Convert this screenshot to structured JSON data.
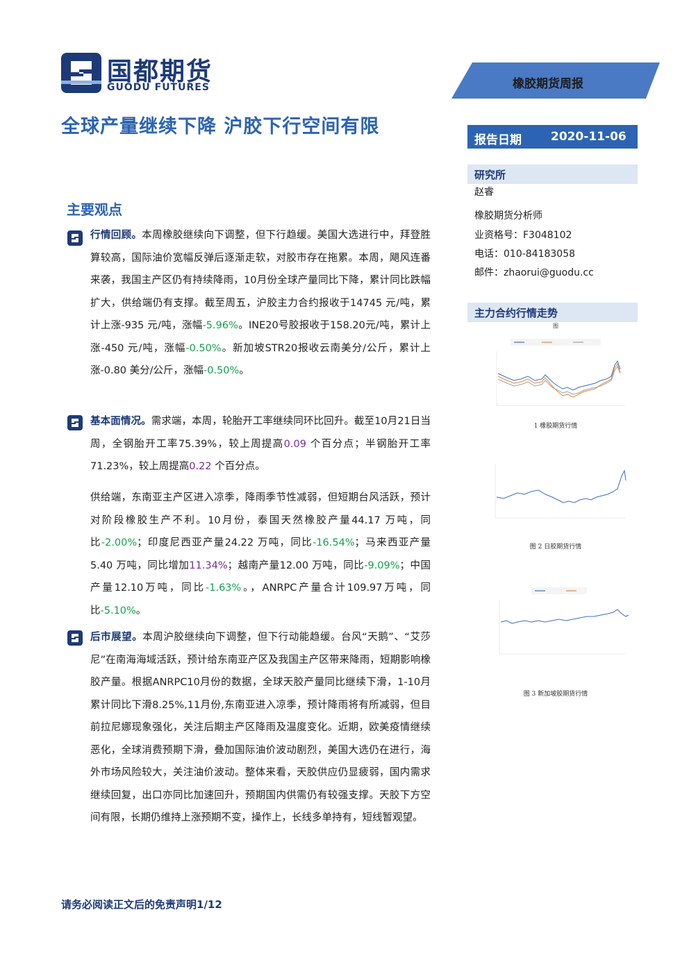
{
  "header": {
    "logo_cn": "国都期货",
    "logo_en": "GUODU FUTURES",
    "report_type": "橡胶期货周报",
    "title": "全球产量继续下降 沪胶下行空间有限",
    "date_label": "报告日期",
    "date_value": "2020-11-06"
  },
  "sidebar": {
    "institute_label": "研究所",
    "analyst_name": "赵睿",
    "analyst_title": "橡胶期货分析师",
    "license": "业资格号：F3048102",
    "phone": "电话：010-84183058",
    "email": "邮件：zhaorui@guodu.cc",
    "trend_label": "主力合约行情走势"
  },
  "main": {
    "section_title": "主要观点",
    "p1": {
      "lead": "行情回顾。",
      "t1": "本周橡胶继续向下调整，但下行趋缓。美国大选进行中，拜登胜算较高，国际油价宽幅反弹后逐渐走软，对胶市存在拖累。本周，飓风连番来袭，我国主产区仍有持续降雨，10月份全球产量同比下降，累计同比跌幅扩大，供给端仍有支撑。截至周五，沪胶主力合约报收于14745 元/吨，累计上涨-935 元/吨，涨幅",
      "v1": "-5.96%",
      "t2": "。INE20号胶报收于158.20元/吨，累计上涨-450 元/吨，涨幅",
      "v2": "-0.50%",
      "t3": "。新加坡STR20报收云南美分/公斤，累计上涨-0.80 美分/公斤，涨幅",
      "v3": "-0.50%",
      "t4": "。"
    },
    "p2": {
      "lead": "基本面情况。",
      "t1": "需求端，本周，轮胎开工率继续同环比回升。截至10月21日当周，全钢胎开工率75.39%，较上周提高",
      "v1": "0.09",
      "t2": " 个百分点；半钢胎开工率71.23%，较上周提高",
      "v2": "0.22",
      "t3": " 个百分点。"
    },
    "p3": {
      "t1": "供给端，东南亚主产区进入凉季，降雨季节性减弱，但短期台风活跃，预计对阶段橡胶生产不利。10月份，泰国天然橡胶产量44.17 万吨，同比",
      "v1": "-2.00%",
      "t2": "；印度尼西亚产量24.22 万吨，同比",
      "v2": "-16.54%",
      "t3": "；马来西亚产量5.40 万吨，同比增加",
      "v3": "11.34%",
      "t4": "；越南产量12.00 万吨，同比",
      "v4": "-9.09%",
      "t5": "；中国产量12.10万吨，同比",
      "v5": "-1.63%",
      "t6": "。，ANRPC产量合计109.97万吨，同比",
      "v6": "-5.10%",
      "t7": "。"
    },
    "p4": {
      "lead": "后市展望。",
      "t1": "本周沪胶继续向下调整，但下行动能趋缓。台风“天鹅”、“艾莎尼”在南海海域活跃，预计给东南亚产区及我国主产区带来降雨，短期影响橡胶产量。根据ANRPC10月份的数据，全球天胶产量同比继续下滑，1-10月累计同比下滑8.25%,11月份,东南亚进入凉季，预计降雨将有所减弱，但目前拉尼娜现象强化，关注后期主产区降雨及温度变化。近期，欧美疫情继续恶化，全球消费预期下滑，叠加国际油价波动剧烈，美国大选仍在进行，海外市场风险较大，关注油价波动。整体来看，天胶供应仍显疲弱，国内需求继续回复，出口亦同比加速回升，预期国内供需仍有较强支撑。天胶下方空间有限，长期仍维持上涨预期不变，操作上，长线多单持有，短线暂观望。"
    }
  },
  "charts": {
    "c1_top": "图",
    "c1_caption": "1 橡胶期货行情",
    "c2_caption": "图 2 日胶期货行情",
    "c3_caption": "图 3 新加坡胶期货行情"
  },
  "footer": {
    "text": "请务必阅读正文后的免责声明1/12"
  },
  "colors": {
    "brand_blue": "#2c64b3",
    "navy": "#1d3a78",
    "negative_green": "#12a24a",
    "positive_purple": "#7a2a9a",
    "banner_bg": "#4a7ac4"
  }
}
